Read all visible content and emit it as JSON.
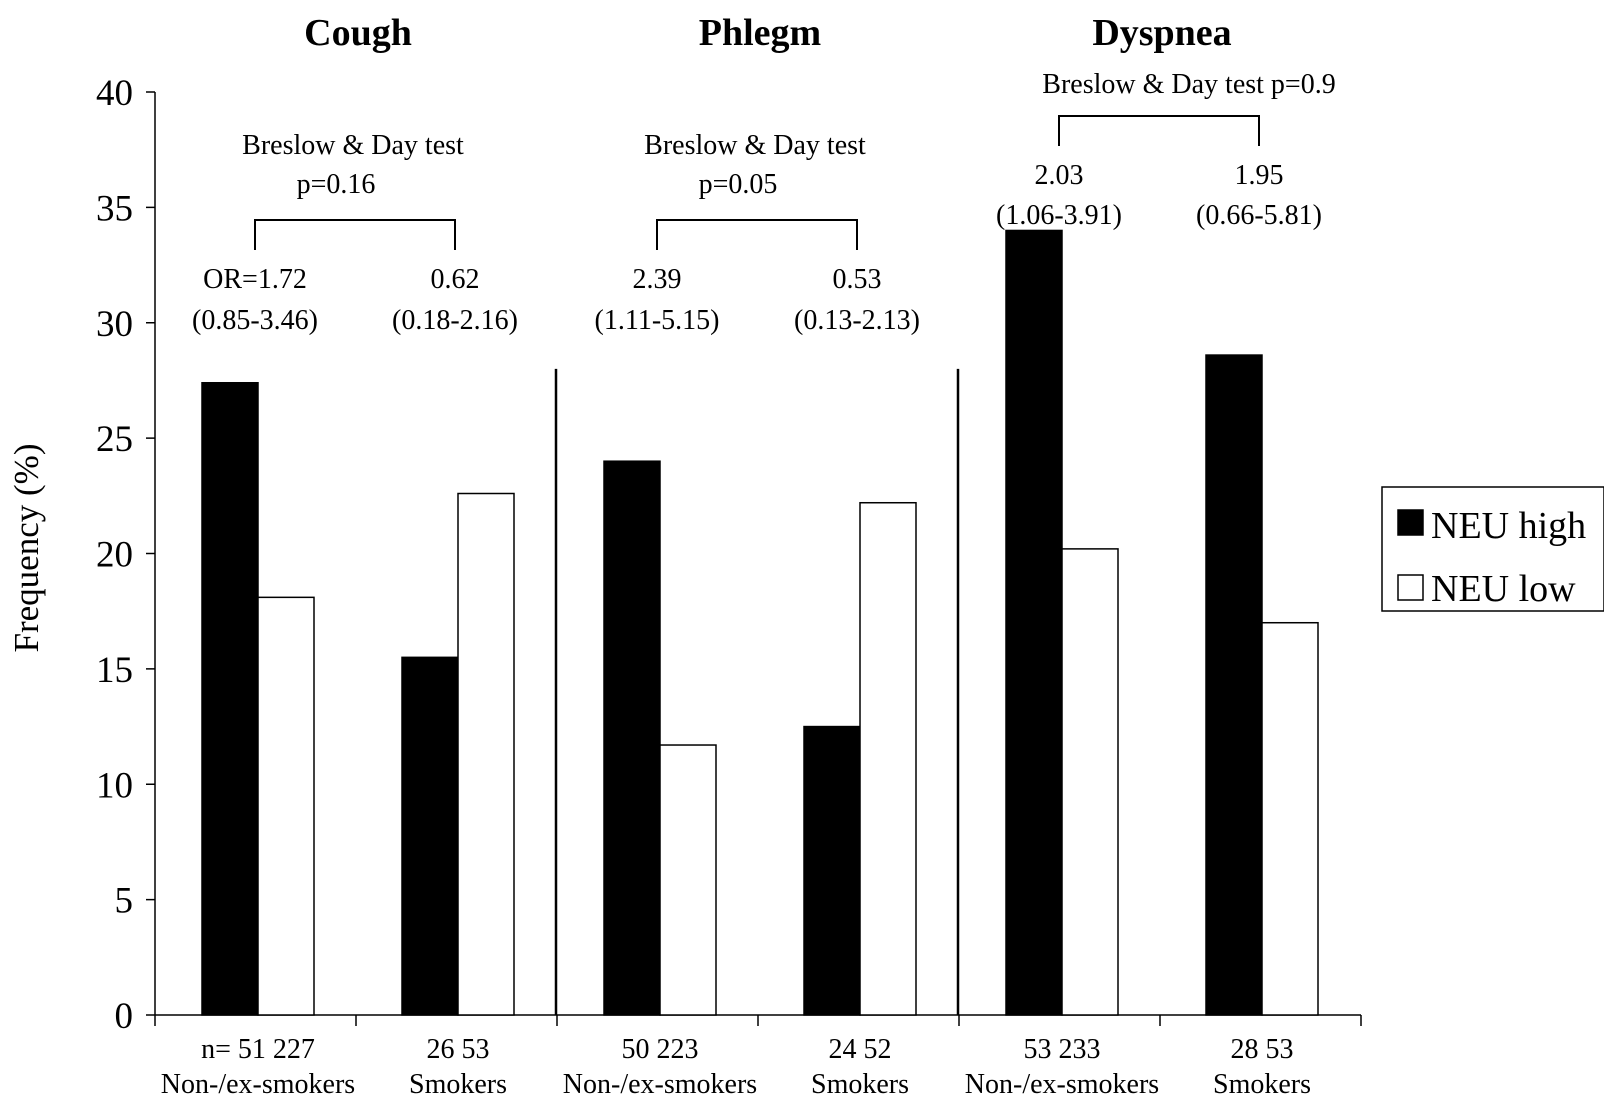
{
  "colors": {
    "neu_high": "#000000",
    "neu_low": "#ffffff",
    "stroke": "#000000"
  },
  "chart_data": {
    "type": "bar",
    "ylabel": "Frequency (%)",
    "ylim": [
      0,
      40
    ],
    "yticks": [
      0,
      5,
      10,
      15,
      20,
      25,
      30,
      35,
      40
    ],
    "series_names": [
      "NEU high",
      "NEU low"
    ],
    "legend_position": "right",
    "panels": [
      {
        "title": "Cough",
        "groups": [
          {
            "label": "Non-/ex-smokers",
            "n_text": "n=  51  227",
            "values": [
              27.4,
              18.1
            ]
          },
          {
            "label": "Smokers",
            "n_text": "26   53",
            "values": [
              15.5,
              22.6
            ]
          }
        ],
        "test_lines": [
          "Breslow & Day test",
          "p=0.16"
        ],
        "or_lines": [
          [
            "OR=1.72",
            "(0.85-3.46)"
          ],
          [
            "0.62",
            "(0.18-2.16)"
          ]
        ]
      },
      {
        "title": "Phlegm",
        "groups": [
          {
            "label": "Non-/ex-smokers",
            "n_text": "50   223",
            "values": [
              24.0,
              11.7
            ]
          },
          {
            "label": "Smokers",
            "n_text": "24   52",
            "values": [
              12.5,
              22.2
            ]
          }
        ],
        "test_lines": [
          "Breslow & Day test",
          "p=0.05"
        ],
        "or_lines": [
          [
            "2.39",
            "(1.11-5.15)"
          ],
          [
            "0.53",
            "(0.13-2.13)"
          ]
        ]
      },
      {
        "title": "Dyspnea",
        "groups": [
          {
            "label": "Non-/ex-smokers",
            "n_text": "53  233",
            "values": [
              34.0,
              20.2
            ]
          },
          {
            "label": "Smokers",
            "n_text": "28   53",
            "values": [
              28.6,
              17.0
            ]
          }
        ],
        "test_lines": [
          "Breslow & Day test p=0.9"
        ],
        "or_lines": [
          [
            "2.03",
            "(1.06-3.91)"
          ],
          [
            "1.95",
            "(0.66-5.81)"
          ]
        ]
      }
    ]
  }
}
